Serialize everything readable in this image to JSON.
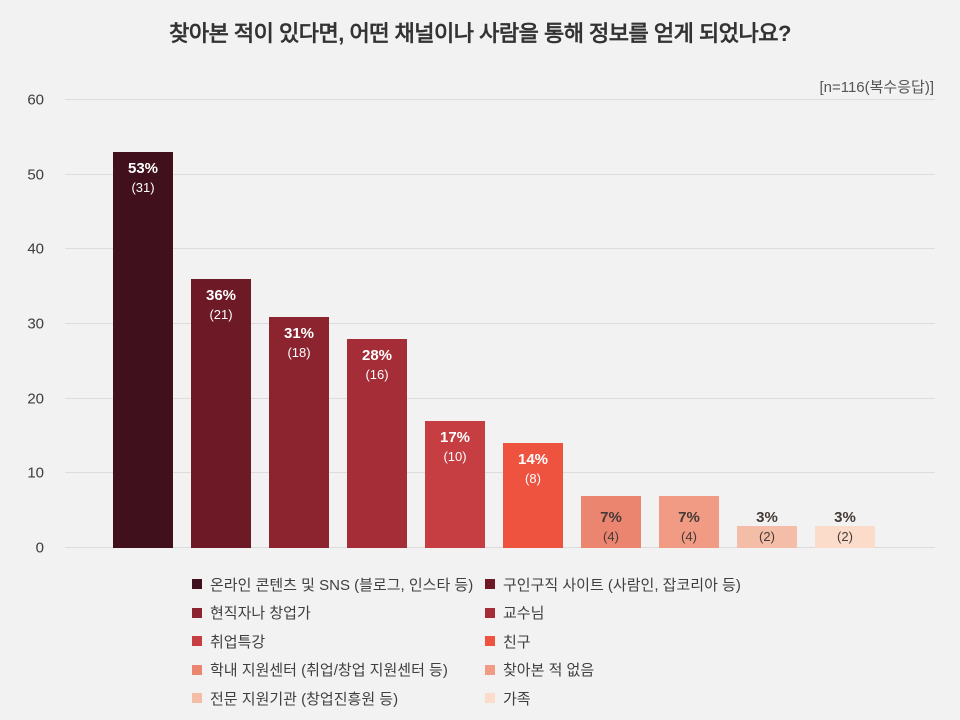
{
  "chart_data": {
    "type": "bar",
    "title": "찾아본 적이 있다면, 어떤 채널이나 사람을 통해 정보를 얻게 되었나요?",
    "annotation": "[n=116(복수응답)]",
    "ylim": [
      0,
      60
    ],
    "ytick_interval": 10,
    "grid": true,
    "legend_position": "bottom-two-columns",
    "categories": [
      "온라인 콘텐츠 및 SNS (블로그, 인스타 등)",
      "구인구직 사이트 (사람인, 잡코리아 등)",
      "현직자나 창업가",
      "교수님",
      "취업특강",
      "친구",
      "학내 지원센터 (취업/창업 지원센터 등)",
      "찾아본 적 없음",
      "전문 지원기관 (창업진흥원 등)",
      "가족"
    ],
    "values": [
      53,
      36,
      31,
      28,
      17,
      14,
      7,
      7,
      3,
      3
    ],
    "counts": [
      31,
      21,
      18,
      16,
      10,
      8,
      4,
      4,
      2,
      2
    ],
    "bar_colors": [
      "#40101c",
      "#6d1a26",
      "#8c2430",
      "#a42d38",
      "#c63d42",
      "#ee5340",
      "#ec8570",
      "#f19b84",
      "#f4bda8",
      "#fbdccb"
    ],
    "inside_label_color": "#ffffff",
    "outside_label_color": "#443a36",
    "background_color": "#f2f2f2",
    "gridline_color": "#dcdcdc"
  }
}
